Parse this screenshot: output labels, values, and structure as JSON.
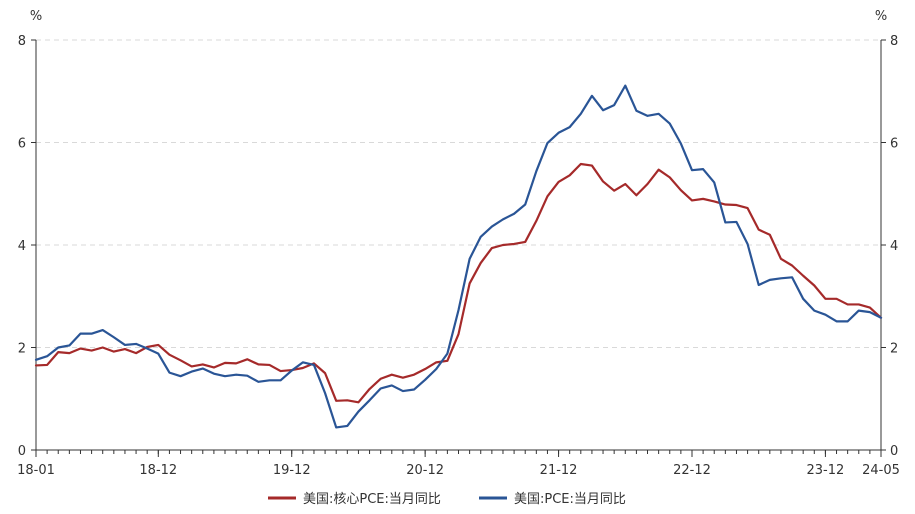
{
  "chart_data": {
    "type": "line",
    "title": "",
    "xlabel": "",
    "ylabel": "",
    "y_unit_left": "%",
    "y_unit_right": "%",
    "ylim": [
      0,
      8
    ],
    "yticks": [
      0,
      2,
      4,
      6,
      8
    ],
    "grid": true,
    "legend_position": "bottom",
    "x": [
      "18-01",
      "18-02",
      "18-03",
      "18-04",
      "18-05",
      "18-06",
      "18-07",
      "18-08",
      "18-09",
      "18-10",
      "18-11",
      "18-12",
      "19-01",
      "19-02",
      "19-03",
      "19-04",
      "19-05",
      "19-06",
      "19-07",
      "19-08",
      "19-09",
      "19-10",
      "19-11",
      "19-12",
      "20-01",
      "20-02",
      "20-03",
      "20-04",
      "20-05",
      "20-06",
      "20-07",
      "20-08",
      "20-09",
      "20-10",
      "20-11",
      "20-12",
      "21-01",
      "21-02",
      "21-03",
      "21-04",
      "21-05",
      "21-06",
      "21-07",
      "21-08",
      "21-09",
      "21-10",
      "21-11",
      "21-12",
      "22-01",
      "22-02",
      "22-03",
      "22-04",
      "22-05",
      "22-06",
      "22-07",
      "22-08",
      "22-09",
      "22-10",
      "22-11",
      "22-12",
      "23-01",
      "23-02",
      "23-03",
      "23-04",
      "23-05",
      "23-06",
      "23-07",
      "23-08",
      "23-09",
      "23-10",
      "23-11",
      "23-12",
      "24-01",
      "24-02",
      "24-03",
      "24-04",
      "24-05"
    ],
    "xtick_labels": [
      "18-01",
      "18-12",
      "19-12",
      "20-12",
      "21-12",
      "22-12",
      "23-12",
      "24-05"
    ],
    "series": [
      {
        "name": "美国:核心PCE:当月同比",
        "color": "#a52a2a",
        "values": [
          1.65,
          1.66,
          1.91,
          1.89,
          1.98,
          1.94,
          2.0,
          1.92,
          1.97,
          1.89,
          2.01,
          2.05,
          1.86,
          1.75,
          1.63,
          1.67,
          1.61,
          1.7,
          1.69,
          1.77,
          1.67,
          1.66,
          1.54,
          1.56,
          1.6,
          1.69,
          1.5,
          0.96,
          0.97,
          0.93,
          1.19,
          1.39,
          1.47,
          1.41,
          1.47,
          1.58,
          1.71,
          1.74,
          2.26,
          3.25,
          3.65,
          3.94,
          4.0,
          4.02,
          4.06,
          4.47,
          4.95,
          5.23,
          5.36,
          5.58,
          5.55,
          5.24,
          5.06,
          5.19,
          4.97,
          5.19,
          5.47,
          5.32,
          5.07,
          4.87,
          4.9,
          4.85,
          4.79,
          4.78,
          4.72,
          4.3,
          4.2,
          3.73,
          3.6,
          3.4,
          3.21,
          2.95,
          2.95,
          2.84,
          2.84,
          2.78,
          2.58
        ]
      },
      {
        "name": "美国:PCE:当月同比",
        "color": "#2a5596",
        "values": [
          1.76,
          1.83,
          2.0,
          2.04,
          2.27,
          2.27,
          2.34,
          2.2,
          2.05,
          2.07,
          1.98,
          1.88,
          1.51,
          1.44,
          1.53,
          1.59,
          1.49,
          1.44,
          1.47,
          1.45,
          1.33,
          1.36,
          1.36,
          1.55,
          1.71,
          1.66,
          1.11,
          0.44,
          0.47,
          0.75,
          0.97,
          1.2,
          1.26,
          1.15,
          1.18,
          1.37,
          1.58,
          1.88,
          2.73,
          3.73,
          4.16,
          4.36,
          4.5,
          4.61,
          4.79,
          5.44,
          5.99,
          6.19,
          6.3,
          6.56,
          6.91,
          6.63,
          6.73,
          7.11,
          6.62,
          6.52,
          6.56,
          6.37,
          5.98,
          5.46,
          5.48,
          5.22,
          4.44,
          4.45,
          4.02,
          3.22,
          3.32,
          3.35,
          3.37,
          2.95,
          2.72,
          2.64,
          2.51,
          2.51,
          2.72,
          2.69,
          2.58
        ]
      }
    ]
  }
}
